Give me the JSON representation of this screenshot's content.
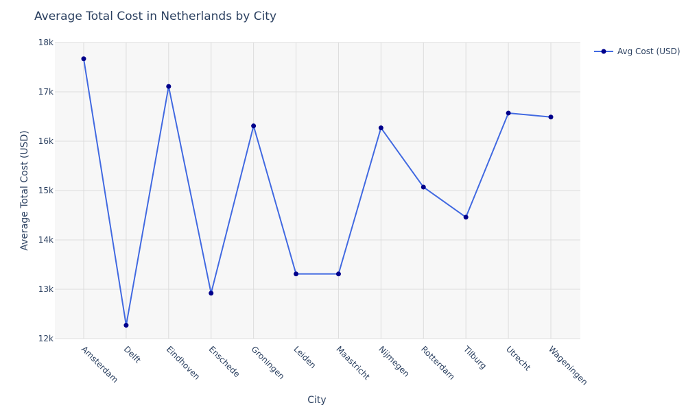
{
  "chart_data": {
    "type": "line",
    "title": "Average Total Cost in Netherlands by City",
    "xlabel": "City",
    "ylabel": "Average Total Cost (USD)",
    "categories": [
      "Amsterdam",
      "Delft",
      "Eindhoven",
      "Enschede",
      "Groningen",
      "Leiden",
      "Maastricht",
      "Nijmegen",
      "Rotterdam",
      "Tilburg",
      "Utrecht",
      "Wageningen"
    ],
    "series": [
      {
        "name": "Avg Cost (USD)",
        "values": [
          17670,
          12270,
          17110,
          12920,
          16310,
          13310,
          13310,
          16270,
          15070,
          14460,
          16570,
          16490
        ]
      }
    ],
    "ylim": [
      12000,
      18000
    ],
    "yticks": [
      12000,
      13000,
      14000,
      15000,
      16000,
      17000,
      18000
    ],
    "ytick_labels": [
      "12k",
      "13k",
      "14k",
      "15k",
      "16k",
      "17k",
      "18k"
    ],
    "grid": true,
    "legend_position": "top-right",
    "colors": {
      "line": "#4169e1",
      "marker": "#00008b",
      "plot_background": "#f7f7f7",
      "grid": "#dcdcdc",
      "text": "#2a3f5f"
    }
  }
}
